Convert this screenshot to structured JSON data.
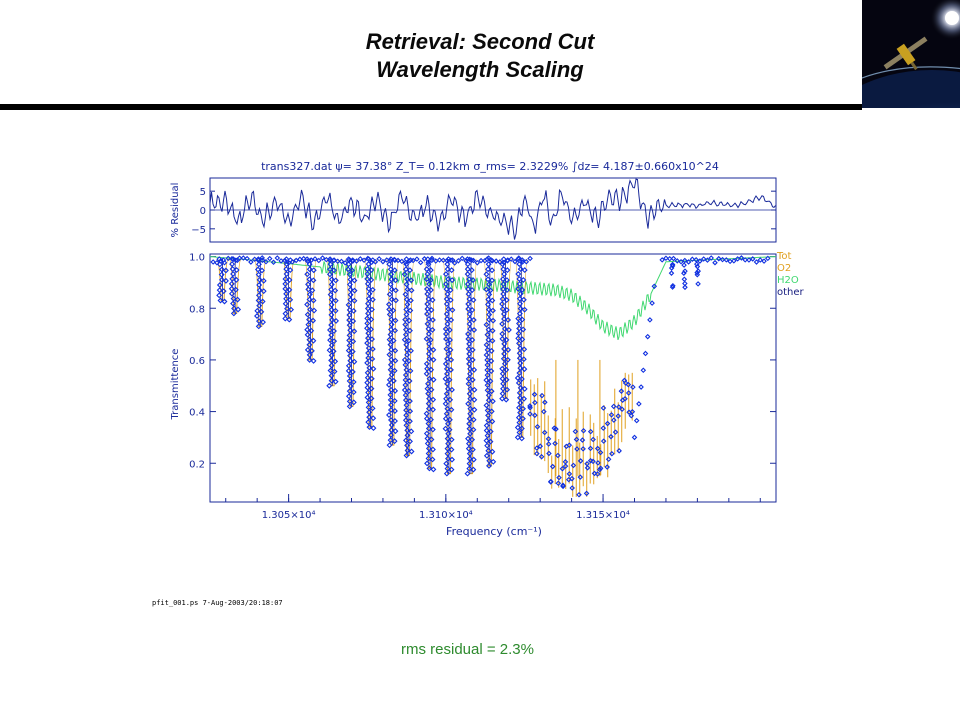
{
  "slide": {
    "title_line1": "Retrieval: Second Cut",
    "title_line2": "Wavelength Scaling",
    "footer_timestamp": "pfit_001.ps   7-Aug-2003/20:18:07",
    "rms_note": "rms residual = 2.3%"
  },
  "colors": {
    "frame": "#1a2a9a",
    "measured": "#1030e0",
    "model": "#e0a020",
    "o2_fit": "#1a2080",
    "h2o_trans": "#40d870",
    "rms_note": "#2e8b2e"
  },
  "chart_data": [
    {
      "type": "line",
      "panel": "residual",
      "header": "trans327.dat   ψ= 37.38°  Z_T=  0.12km   σ_rms= 2.3229%   ∫dz= 4.187±0.660x10^24",
      "ylabel": "% Residual",
      "ylim": [
        -8.5,
        8.5
      ],
      "y_ticks": [
        5,
        0,
        -5
      ],
      "y_tick_labels": [
        "5",
        "0",
        "−5"
      ],
      "xlim": [
        13025,
        13205
      ],
      "zero_line": true,
      "series": [
        {
          "x": [
            13025,
            13030,
            13034,
            13038,
            13042,
            13046,
            13050,
            13054,
            13058,
            13062,
            13066,
            13070,
            13074,
            13078,
            13082,
            13086,
            13090,
            13094,
            13098,
            13102,
            13106,
            13110,
            13114,
            13118,
            13122,
            13125,
            13128,
            13131,
            13134,
            13137,
            13140,
            13144,
            13148,
            13152,
            13156,
            13160,
            13164,
            13168,
            13172,
            13176,
            13180,
            13184,
            13188,
            13192,
            13196,
            13200,
            13205
          ],
          "values": [
            1.5,
            2.5,
            -3.5,
            3.2,
            -3.0,
            2.8,
            -3.8,
            3.5,
            -4.0,
            3.6,
            -3.2,
            2.5,
            -2.8,
            3.0,
            -3.5,
            3.8,
            -2.5,
            1.0,
            -3.0,
            3.4,
            -2.6,
            3.5,
            -1.0,
            -2.8,
            -5.5,
            3.5,
            -4.5,
            4.0,
            -3.6,
            5.0,
            -3.0,
            2.2,
            -2.5,
            3.5,
            2.8,
            8.0,
            -2.2,
            1.0,
            1.2,
            1.5,
            1.2,
            1.8,
            1.5,
            1.2,
            2.0,
            3.5,
            1.0
          ]
        }
      ]
    },
    {
      "type": "line",
      "panel": "transmittance",
      "xlabel": "Frequency (cm⁻¹)",
      "ylabel": "Transmittence",
      "xlim": [
        13025,
        13205
      ],
      "ylim": [
        0.05,
        1.01
      ],
      "x_tick_labels": [
        {
          "x": 13050,
          "label": "1.305×10⁴"
        },
        {
          "x": 13100,
          "label": "1.310×10⁴"
        },
        {
          "x": 13150,
          "label": "1.315×10⁴"
        }
      ],
      "y_ticks": [
        0.2,
        0.4,
        0.6,
        0.8,
        1.0
      ],
      "y_tick_labels": [
        "0.2",
        "0.4",
        "0.6",
        "0.8",
        "1.0"
      ],
      "legend_labels": [
        "Tot",
        "O2",
        "H2O",
        "other"
      ],
      "band_lines": [
        {
          "x": 13029,
          "min": 0.83
        },
        {
          "x": 13033,
          "min": 0.78
        },
        {
          "x": 13041,
          "min": 0.73
        },
        {
          "x": 13050,
          "min": 0.76
        },
        {
          "x": 13057,
          "min": 0.6
        },
        {
          "x": 13064,
          "min": 0.5
        },
        {
          "x": 13070,
          "min": 0.42
        },
        {
          "x": 13076,
          "min": 0.34
        },
        {
          "x": 13083,
          "min": 0.27
        },
        {
          "x": 13088,
          "min": 0.23
        },
        {
          "x": 13095,
          "min": 0.18
        },
        {
          "x": 13101,
          "min": 0.16
        },
        {
          "x": 13108,
          "min": 0.16
        },
        {
          "x": 13114,
          "min": 0.19
        },
        {
          "x": 13119,
          "min": 0.45
        },
        {
          "x": 13124,
          "min": 0.3
        }
      ],
      "r_branch": {
        "x_start": 13127,
        "x_end": 13160,
        "floor": 0.1
      },
      "h2o_curve": {
        "x": [
          13025,
          13040,
          13060,
          13080,
          13100,
          13115,
          13125,
          13135,
          13140,
          13145,
          13150,
          13155,
          13160,
          13165,
          13170,
          13205
        ],
        "values": [
          1.0,
          0.985,
          0.96,
          0.93,
          0.9,
          0.89,
          0.88,
          0.87,
          0.85,
          0.8,
          0.73,
          0.7,
          0.75,
          0.85,
          0.98,
          1.0
        ]
      }
    }
  ]
}
